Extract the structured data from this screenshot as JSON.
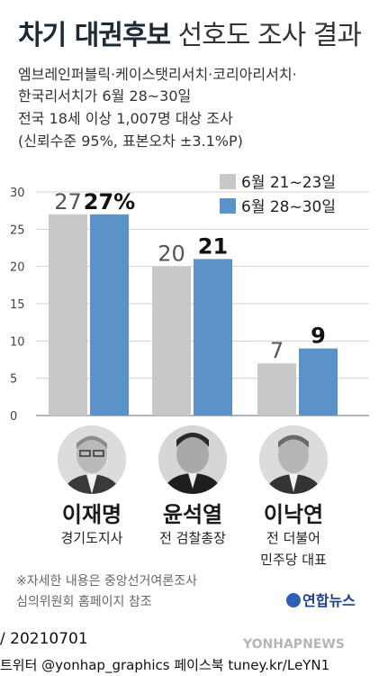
{
  "title": {
    "bold": "차기 대권후보",
    "light": "선호도 조사 결과"
  },
  "subtitle": [
    "엠브레인퍼블릭·케이스탯리서치·코리아리서치·",
    "한국리서치가 6월 28~30일",
    "전국 18세 이상 1,007명 대상 조사",
    "(신뢰수준 95%, 표본오차 ±3.1%P)"
  ],
  "colors": {
    "prev": "#c8c8c8",
    "curr": "#5b93c9"
  },
  "chart_data": {
    "type": "bar",
    "categories": [
      "이재명",
      "윤석열",
      "이낙연"
    ],
    "series": [
      {
        "name": "6월 21~23일",
        "values": [
          27,
          20,
          7
        ],
        "labels": [
          "27",
          "20",
          "7"
        ]
      },
      {
        "name": "6월 28~30일",
        "values": [
          27,
          21,
          9
        ],
        "labels": [
          "27%",
          "21",
          "9"
        ]
      }
    ],
    "ylim": [
      0,
      30
    ],
    "yticks": [
      "0",
      "5",
      "10",
      "15",
      "20",
      "25",
      "30"
    ],
    "grid": true,
    "legend": "top-right"
  },
  "candidates": [
    {
      "name": "이재명",
      "role": [
        "경기도지사"
      ]
    },
    {
      "name": "윤석열",
      "role": [
        "전 검찰총장"
      ]
    },
    {
      "name": "이낙연",
      "role": [
        "전 더불어",
        "민주당 대표"
      ]
    }
  ],
  "note": [
    "※자세한 내용은 중앙선거여론조사",
    "심의위원회 홈페이지 참조"
  ],
  "logo": "연합뉴스",
  "footer": {
    "date": "/ 20210701",
    "social": "트위터 @yonhap_graphics  페이스북 tuney.kr/LeYN1"
  },
  "watermark": "YONHAPNEWS"
}
